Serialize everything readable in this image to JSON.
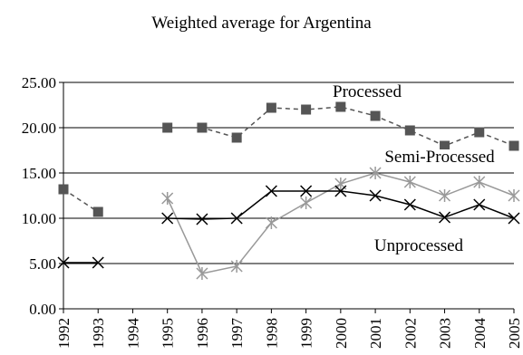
{
  "chart_data": {
    "type": "line",
    "title": "Weighted average for Argentina",
    "xlabel": "",
    "ylabel": "",
    "ylim": [
      0,
      25
    ],
    "yticks": [
      "0.00",
      "5.00",
      "10.00",
      "15.00",
      "20.00",
      "25.00"
    ],
    "categories": [
      "1992",
      "1993",
      "1994",
      "1995",
      "1996",
      "1997",
      "1998",
      "1999",
      "2000",
      "2001",
      "2002",
      "2003",
      "2004",
      "2005"
    ],
    "grid": "horizontal",
    "series": [
      {
        "name": "Processed",
        "color": "#555555",
        "line_style": "dashed",
        "marker": "square",
        "values": [
          13.2,
          10.7,
          null,
          20.0,
          20.0,
          18.9,
          22.2,
          22.0,
          22.3,
          21.3,
          19.7,
          18.0,
          19.5,
          18.0
        ]
      },
      {
        "name": "Semi-Processed",
        "color": "#999999",
        "line_style": "solid",
        "marker": "asterisk",
        "values": [
          null,
          null,
          null,
          12.2,
          3.9,
          4.7,
          9.5,
          11.7,
          13.8,
          15.0,
          14.0,
          12.5,
          14.0,
          12.5
        ]
      },
      {
        "name": "Unprocessed",
        "color": "#000000",
        "line_style": "solid",
        "marker": "x",
        "values": [
          5.1,
          5.1,
          null,
          10.0,
          9.9,
          10.0,
          13.0,
          13.0,
          13.0,
          12.5,
          11.5,
          10.1,
          11.5,
          10.0
        ]
      }
    ]
  }
}
